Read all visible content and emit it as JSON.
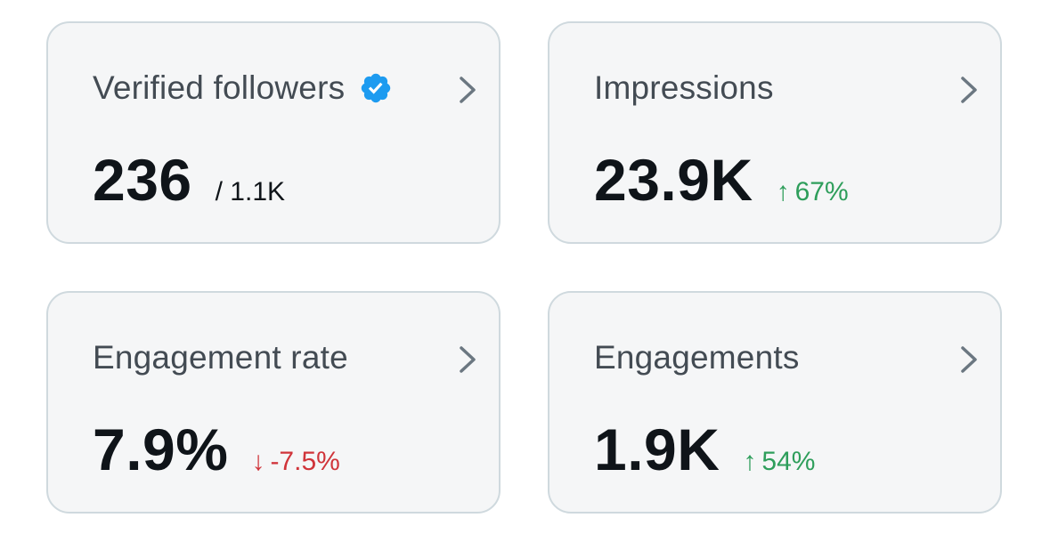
{
  "cards": [
    {
      "title": "Verified followers",
      "verified_icon": "verified-badge-icon",
      "value": "236",
      "sub": "/ 1.1K"
    },
    {
      "title": "Impressions",
      "value": "23.9K",
      "change_arrow": "↑",
      "change": "67%",
      "trend": "up"
    },
    {
      "title": "Engagement rate",
      "value": "7.9%",
      "change_arrow": "↓",
      "change": "-7.5%",
      "trend": "down"
    },
    {
      "title": "Engagements",
      "value": "1.9K",
      "change_arrow": "↑",
      "change": "54%",
      "trend": "up"
    }
  ],
  "colors": {
    "card_bg": "#f5f6f7",
    "card_border": "#cfd9de",
    "title": "#434b53",
    "value": "#0f1419",
    "up": "#2e9e5b",
    "down": "#d0343a",
    "verified": "#1d9bf0",
    "chevron": "#6b7781"
  },
  "icons": {
    "chevron": "chevron-right-icon"
  }
}
